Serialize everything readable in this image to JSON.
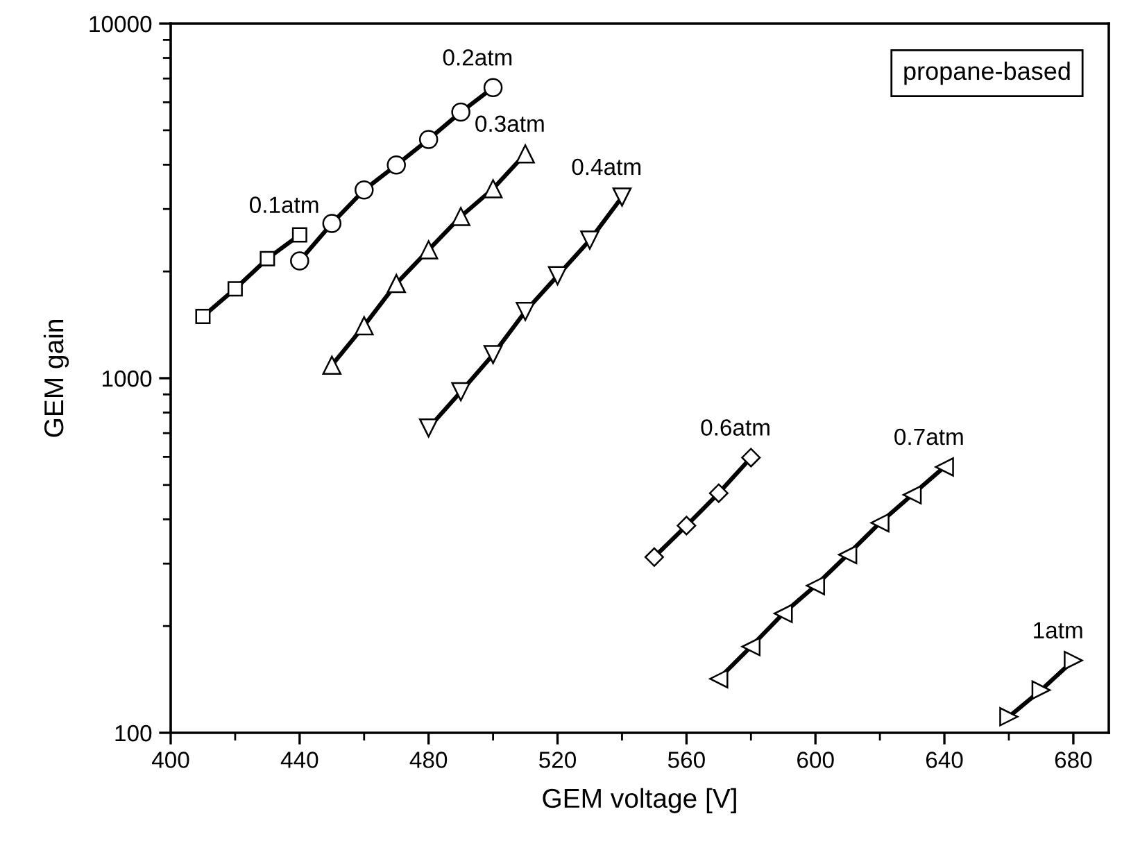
{
  "chart_data": {
    "type": "line",
    "xlabel": "GEM voltage [V]",
    "ylabel": "GEM gain",
    "log": "y",
    "xlim": [
      400,
      691
    ],
    "xticks": [
      400,
      440,
      480,
      520,
      560,
      600,
      640,
      680
    ],
    "ylim": [
      100,
      10000
    ],
    "yticks": [
      100,
      1000,
      10000
    ],
    "grid": false,
    "legend": false,
    "line_style": "solid",
    "annotations": [
      "propane-based"
    ],
    "series": [
      {
        "name": "0.1atm",
        "color": "#000000",
        "marker": "square",
        "x": [
          410,
          420,
          430,
          440
        ],
        "values": [
          1493,
          1787,
          2174,
          2535
        ]
      },
      {
        "name": "0.2atm",
        "color": "#000000",
        "marker": "circle",
        "x": [
          440,
          450,
          460,
          470,
          480,
          490,
          500
        ],
        "values": [
          2142,
          2732,
          3395,
          3992,
          4713,
          5628,
          6600
        ]
      },
      {
        "name": "0.3atm",
        "color": "#000000",
        "marker": "triangle",
        "x": [
          450,
          460,
          470,
          480,
          490,
          500,
          510
        ],
        "values": [
          1088,
          1406,
          1849,
          2301,
          2858,
          3422,
          4292
        ]
      },
      {
        "name": "0.4atm",
        "color": "#000000",
        "marker": "triangle-down",
        "x": [
          480,
          490,
          500,
          510,
          520,
          530,
          540
        ],
        "values": [
          724,
          916,
          1166,
          1543,
          1945,
          2451,
          3243
        ]
      },
      {
        "name": "0.6atm",
        "color": "#000000",
        "marker": "diamond",
        "x": [
          550,
          560,
          570,
          580
        ],
        "values": [
          313,
          384,
          474,
          597
        ]
      },
      {
        "name": "0.7atm",
        "color": "#000000",
        "marker": "triangle-left",
        "x": [
          570,
          580,
          590,
          600,
          610,
          620,
          630,
          640
        ],
        "values": [
          142,
          175,
          217,
          260,
          318,
          391,
          469,
          562
        ]
      },
      {
        "name": "1atm",
        "color": "#000000",
        "marker": "triangle-right",
        "x": [
          660,
          670,
          680
        ],
        "values": [
          111,
          132,
          160
        ]
      }
    ]
  }
}
